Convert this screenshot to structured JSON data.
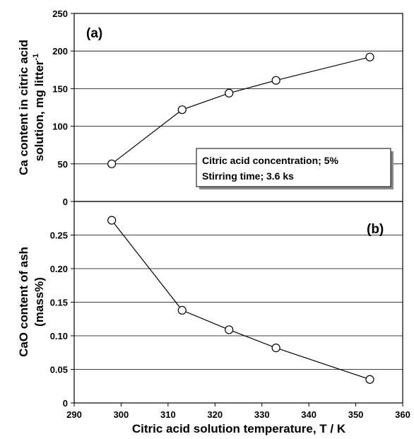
{
  "chart_data": [
    {
      "type": "line",
      "panel_label": "(a)",
      "ylabel_lines": [
        "Ca content in citric acid",
        "solution, mg litter"
      ],
      "ylabel_superscript": "-1",
      "x": [
        298,
        313,
        323,
        333,
        353
      ],
      "series": [
        {
          "values": [
            50,
            122,
            144,
            161,
            192
          ]
        }
      ],
      "xlim": [
        290,
        360
      ],
      "ylim": [
        0,
        250
      ],
      "yticks": [
        0,
        50,
        100,
        150,
        200,
        250
      ],
      "ytick_labels": [
        "0",
        "50",
        "100",
        "150",
        "200",
        "250"
      ],
      "grid": "horizontal",
      "annotation": [
        "Citric acid concentration; 5%",
        "Stirring time; 3.6 ks"
      ],
      "colors": {
        "line": "#000000",
        "marker_fill": "#ffffff",
        "grid": "#000000"
      }
    },
    {
      "type": "line",
      "panel_label": "(b)",
      "ylabel_lines": [
        "CaO content of ash",
        "(mass%)"
      ],
      "x": [
        298,
        313,
        323,
        333,
        353
      ],
      "series": [
        {
          "values": [
            0.272,
            0.138,
            0.109,
            0.082,
            0.035
          ]
        }
      ],
      "xlim": [
        290,
        360
      ],
      "ylim": [
        0,
        0.3
      ],
      "yticks": [
        0,
        0.05,
        0.1,
        0.15,
        0.2,
        0.25
      ],
      "ytick_labels": [
        "0",
        "0.05",
        "0.10",
        "0.15",
        "0.20",
        "0.25"
      ],
      "grid": "horizontal",
      "colors": {
        "line": "#000000",
        "marker_fill": "#ffffff",
        "grid": "#000000"
      }
    }
  ],
  "xaxis": {
    "label": "Citric acid solution temperature, T / K",
    "ticks": [
      290,
      300,
      310,
      320,
      330,
      340,
      350,
      360
    ],
    "tick_labels": [
      "290",
      "300",
      "310",
      "320",
      "330",
      "340",
      "350",
      "360"
    ]
  }
}
